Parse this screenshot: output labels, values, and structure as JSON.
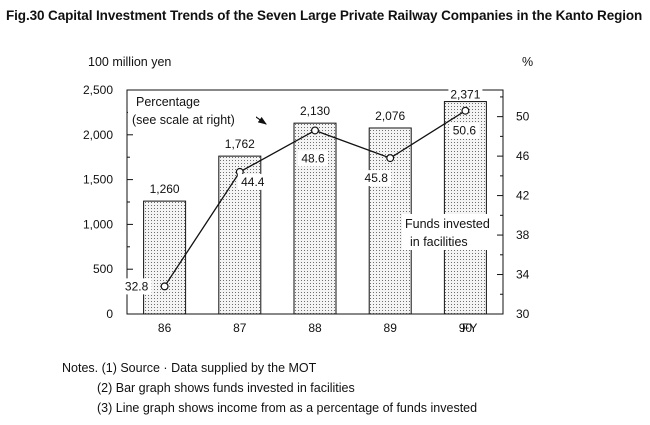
{
  "figure": {
    "title": "Fig.30  Capital Investment Trends of the Seven Large Private Railway Companies in the Kanto Region"
  },
  "chart_data": {
    "type": "bar",
    "categories": [
      "86",
      "87",
      "88",
      "89",
      "90"
    ],
    "xlabel": "FY",
    "series": [
      {
        "name": "Funds invested in facilities",
        "kind": "bar",
        "axis": "left",
        "values": [
          1260,
          1762,
          2130,
          2076,
          2371
        ],
        "labels": [
          "1,260",
          "1,762",
          "2,130",
          "2,076",
          "2,371"
        ]
      },
      {
        "name": "Percentage (see scale at right)",
        "kind": "line",
        "axis": "right",
        "values": [
          32.8,
          44.4,
          48.6,
          45.8,
          50.6
        ],
        "labels": [
          "32.8",
          "44.4",
          "48.6",
          "45.8",
          "50.6"
        ]
      }
    ],
    "y_left": {
      "label": "100 million yen",
      "range": [
        0,
        2500
      ],
      "ticks": [
        0,
        500,
        1000,
        1500,
        2000,
        2500
      ],
      "tick_labels": [
        "0",
        "500",
        "1,000",
        "1,500",
        "2,000",
        "2,500"
      ]
    },
    "y_right": {
      "label": "%",
      "range": [
        30,
        52.7
      ],
      "ticks": [
        30,
        34,
        38,
        42,
        46,
        50
      ],
      "tick_labels": [
        "30",
        "34",
        "38",
        "42",
        "46",
        "50"
      ]
    },
    "annotations": {
      "line_label": [
        "Percentage",
        "(see scale at right)"
      ],
      "bar_label": [
        "Funds invested",
        "in facilities"
      ]
    },
    "grid": false,
    "colors": {
      "ink": "#111111",
      "bar_fill": "#f4f4f4",
      "bar_dots": "#6e6e6e"
    }
  },
  "notes": {
    "line1": "Notes. (1) Source · Data supplied by the MOT",
    "line2": "(2) Bar graph shows funds invested in facilities",
    "line3": "(3) Line graph shows income from as a percentage of funds invested"
  }
}
